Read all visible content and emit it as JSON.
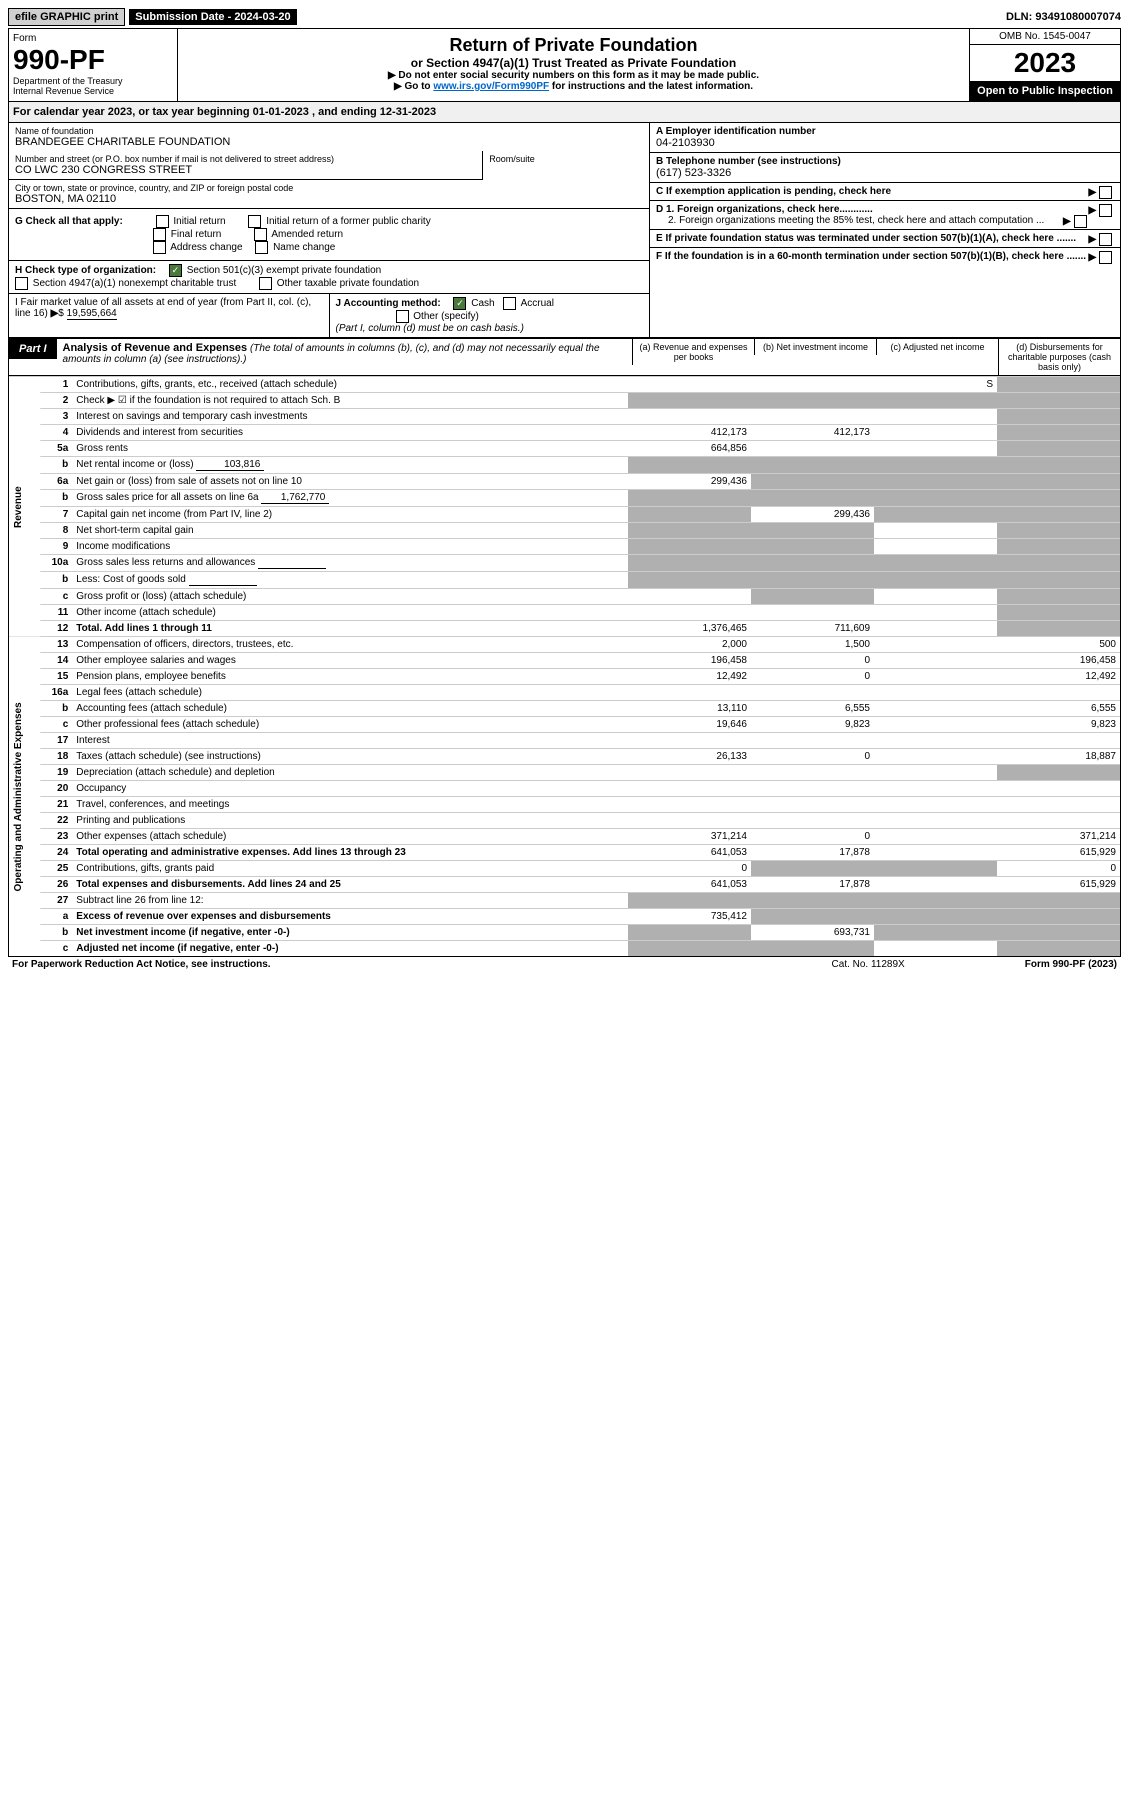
{
  "top": {
    "efile": "efile GRAPHIC print",
    "submission": "Submission Date - 2024-03-20",
    "dln": "DLN: 93491080007074"
  },
  "header": {
    "form_label": "Form",
    "form_no": "990-PF",
    "dept": "Department of the Treasury\nInternal Revenue Service",
    "title": "Return of Private Foundation",
    "subtitle": "or Section 4947(a)(1) Trust Treated as Private Foundation",
    "instr1": "▶ Do not enter social security numbers on this form as it may be made public.",
    "instr2_pre": "▶ Go to ",
    "instr2_link": "www.irs.gov/Form990PF",
    "instr2_post": " for instructions and the latest information.",
    "omb": "OMB No. 1545-0047",
    "year": "2023",
    "open": "Open to Public Inspection"
  },
  "cal": "For calendar year 2023, or tax year beginning 01-01-2023               , and ending 12-31-2023",
  "info": {
    "name_lbl": "Name of foundation",
    "name": "BRANDEGEE CHARITABLE FOUNDATION",
    "addr_lbl": "Number and street (or P.O. box number if mail is not delivered to street address)",
    "addr": "CO LWC 230 CONGRESS STREET",
    "room_lbl": "Room/suite",
    "city_lbl": "City or town, state or province, country, and ZIP or foreign postal code",
    "city": "BOSTON, MA  02110",
    "a_lbl": "A Employer identification number",
    "a_val": "04-2103930",
    "b_lbl": "B Telephone number (see instructions)",
    "b_val": "(617) 523-3326",
    "c_lbl": "C If exemption application is pending, check here",
    "g_lbl": "G Check all that apply:",
    "g_opts": [
      "Initial return",
      "Initial return of a former public charity",
      "Final return",
      "Amended return",
      "Address change",
      "Name change"
    ],
    "d1": "D 1. Foreign organizations, check here............",
    "d2": "2. Foreign organizations meeting the 85% test, check here and attach computation ...",
    "h_lbl": "H Check type of organization:",
    "h1": "Section 501(c)(3) exempt private foundation",
    "h2": "Section 4947(a)(1) nonexempt charitable trust",
    "h3": "Other taxable private foundation",
    "e_lbl": "E  If private foundation status was terminated under section 507(b)(1)(A), check here .......",
    "i_lbl": "I Fair market value of all assets at end of year (from Part II, col. (c), line 16)",
    "i_val": "19,595,664",
    "j_lbl": "J Accounting method:",
    "j_cash": "Cash",
    "j_accrual": "Accrual",
    "j_other": "Other (specify)",
    "j_note": "(Part I, column (d) must be on cash basis.)",
    "f_lbl": "F  If the foundation is in a 60-month termination under section 507(b)(1)(B), check here .......",
    "arrow": "▶"
  },
  "part1": {
    "tag": "Part I",
    "title": "Analysis of Revenue and Expenses",
    "note": "(The total of amounts in columns (b), (c), and (d) may not necessarily equal the amounts in column (a) (see instructions).)",
    "cols": {
      "a": "(a)   Revenue and expenses per books",
      "b": "(b)   Net investment income",
      "c": "(c)   Adjusted net income",
      "d": "(d)   Disbursements for charitable purposes (cash basis only)"
    }
  },
  "sides": {
    "rev": "Revenue",
    "exp": "Operating and Administrative Expenses"
  },
  "rows": [
    {
      "n": "1",
      "d": "Contributions, gifts, grants, etc., received (attach schedule)",
      "a": "",
      "b": "",
      "c": "S",
      "dS": true
    },
    {
      "n": "2",
      "d": "Check ▶ ☑ if the foundation is not required to attach Sch. B",
      "aS": true,
      "bS": true,
      "cS": true,
      "dS": true
    },
    {
      "n": "3",
      "d": "Interest on savings and temporary cash investments",
      "a": "",
      "b": "",
      "c": "",
      "dS": true
    },
    {
      "n": "4",
      "d": "Dividends and interest from securities",
      "a": "412,173",
      "b": "412,173",
      "c": "",
      "dS": true
    },
    {
      "n": "5a",
      "d": "Gross rents",
      "a": "664,856",
      "b": "",
      "c": "",
      "dS": true
    },
    {
      "n": "b",
      "d": "Net rental income or (loss)",
      "sub": "103,816",
      "aS": true,
      "bS": true,
      "cS": true,
      "dS": true
    },
    {
      "n": "6a",
      "d": "Net gain or (loss) from sale of assets not on line 10",
      "a": "299,436",
      "bS": true,
      "cS": true,
      "dS": true
    },
    {
      "n": "b",
      "d": "Gross sales price for all assets on line 6a",
      "sub": "1,762,770",
      "aS": true,
      "bS": true,
      "cS": true,
      "dS": true
    },
    {
      "n": "7",
      "d": "Capital gain net income (from Part IV, line 2)",
      "aS": true,
      "b": "299,436",
      "cS": true,
      "dS": true
    },
    {
      "n": "8",
      "d": "Net short-term capital gain",
      "aS": true,
      "bS": true,
      "c": "",
      "dS": true
    },
    {
      "n": "9",
      "d": "Income modifications",
      "aS": true,
      "bS": true,
      "c": "",
      "dS": true
    },
    {
      "n": "10a",
      "d": "Gross sales less returns and allowances",
      "subBox": true,
      "aS": true,
      "bS": true,
      "cS": true,
      "dS": true
    },
    {
      "n": "b",
      "d": "Less: Cost of goods sold",
      "subBox": true,
      "aS": true,
      "bS": true,
      "cS": true,
      "dS": true
    },
    {
      "n": "c",
      "d": "Gross profit or (loss) (attach schedule)",
      "a": "",
      "bS": true,
      "c": "",
      "dS": true
    },
    {
      "n": "11",
      "d": "Other income (attach schedule)",
      "a": "",
      "b": "",
      "c": "",
      "dS": true
    },
    {
      "n": "12",
      "d": "Total. Add lines 1 through 11",
      "bold": true,
      "a": "1,376,465",
      "b": "711,609",
      "c": "",
      "dS": true
    },
    {
      "n": "13",
      "d": "Compensation of officers, directors, trustees, etc.",
      "a": "2,000",
      "b": "1,500",
      "c": "",
      "dd": "500"
    },
    {
      "n": "14",
      "d": "Other employee salaries and wages",
      "a": "196,458",
      "b": "0",
      "c": "",
      "dd": "196,458"
    },
    {
      "n": "15",
      "d": "Pension plans, employee benefits",
      "a": "12,492",
      "b": "0",
      "c": "",
      "dd": "12,492"
    },
    {
      "n": "16a",
      "d": "Legal fees (attach schedule)",
      "a": "",
      "b": "",
      "c": "",
      "dd": ""
    },
    {
      "n": "b",
      "d": "Accounting fees (attach schedule)",
      "a": "13,110",
      "b": "6,555",
      "c": "",
      "dd": "6,555"
    },
    {
      "n": "c",
      "d": "Other professional fees (attach schedule)",
      "a": "19,646",
      "b": "9,823",
      "c": "",
      "dd": "9,823"
    },
    {
      "n": "17",
      "d": "Interest",
      "a": "",
      "b": "",
      "c": "",
      "dd": ""
    },
    {
      "n": "18",
      "d": "Taxes (attach schedule) (see instructions)",
      "a": "26,133",
      "b": "0",
      "c": "",
      "dd": "18,887"
    },
    {
      "n": "19",
      "d": "Depreciation (attach schedule) and depletion",
      "a": "",
      "b": "",
      "c": "",
      "dS": true
    },
    {
      "n": "20",
      "d": "Occupancy",
      "a": "",
      "b": "",
      "c": "",
      "dd": ""
    },
    {
      "n": "21",
      "d": "Travel, conferences, and meetings",
      "a": "",
      "b": "",
      "c": "",
      "dd": ""
    },
    {
      "n": "22",
      "d": "Printing and publications",
      "a": "",
      "b": "",
      "c": "",
      "dd": ""
    },
    {
      "n": "23",
      "d": "Other expenses (attach schedule)",
      "a": "371,214",
      "b": "0",
      "c": "",
      "dd": "371,214"
    },
    {
      "n": "24",
      "d": "Total operating and administrative expenses. Add lines 13 through 23",
      "bold": true,
      "a": "641,053",
      "b": "17,878",
      "c": "",
      "dd": "615,929"
    },
    {
      "n": "25",
      "d": "Contributions, gifts, grants paid",
      "a": "0",
      "bS": true,
      "cS": true,
      "dd": "0"
    },
    {
      "n": "26",
      "d": "Total expenses and disbursements. Add lines 24 and 25",
      "bold": true,
      "a": "641,053",
      "b": "17,878",
      "c": "",
      "dd": "615,929"
    },
    {
      "n": "27",
      "d": "Subtract line 26 from line 12:",
      "aS": true,
      "bS": true,
      "cS": true,
      "dS": true
    },
    {
      "n": "a",
      "d": "Excess of revenue over expenses and disbursements",
      "bold": true,
      "a": "735,412",
      "bS": true,
      "cS": true,
      "dS": true
    },
    {
      "n": "b",
      "d": "Net investment income (if negative, enter -0-)",
      "bold": true,
      "aS": true,
      "b": "693,731",
      "cS": true,
      "dS": true
    },
    {
      "n": "c",
      "d": "Adjusted net income (if negative, enter -0-)",
      "bold": true,
      "aS": true,
      "bS": true,
      "c": "",
      "dS": true
    }
  ],
  "footer": {
    "left": "For Paperwork Reduction Act Notice, see instructions.",
    "mid": "Cat. No. 11289X",
    "right": "Form 990-PF (2023)"
  }
}
